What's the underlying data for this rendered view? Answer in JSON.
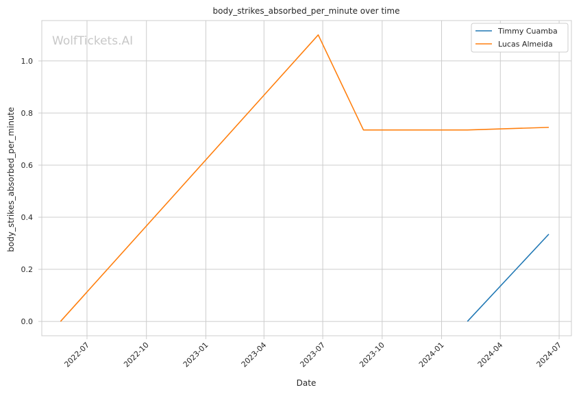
{
  "chart_data": {
    "type": "line",
    "title": "body_strikes_absorbed_per_minute over time",
    "xlabel": "Date",
    "ylabel": "body_strikes_absorbed_per_minute",
    "watermark": "WolfTickets.AI",
    "xlim": [
      "2022-04-22",
      "2024-07-20"
    ],
    "ylim": [
      -0.055,
      1.155
    ],
    "x_ticks": [
      "2022-07-01",
      "2022-10-01",
      "2023-01-01",
      "2023-04-01",
      "2023-07-01",
      "2023-10-01",
      "2024-01-01",
      "2024-04-01",
      "2024-07-01"
    ],
    "x_tick_labels": [
      "2022-07",
      "2022-10",
      "2023-01",
      "2023-04",
      "2023-07",
      "2023-10",
      "2024-01",
      "2024-04",
      "2024-07"
    ],
    "y_ticks": [
      0.0,
      0.2,
      0.4,
      0.6,
      0.8,
      1.0
    ],
    "y_tick_labels": [
      "0.0",
      "0.2",
      "0.4",
      "0.6",
      "0.8",
      "1.0"
    ],
    "grid": true,
    "legend_position": "top-right",
    "series": [
      {
        "name": "Timmy Cuamba",
        "color": "#1f77b4",
        "x": [
          "2024-02-10",
          "2024-06-15"
        ],
        "y": [
          0.0,
          0.335
        ]
      },
      {
        "name": "Lucas Almeida",
        "color": "#ff7f0e",
        "x": [
          "2022-05-21",
          "2023-06-24",
          "2023-09-02",
          "2024-02-10",
          "2024-06-15"
        ],
        "y": [
          0.0,
          1.1,
          0.735,
          0.735,
          0.745
        ]
      }
    ]
  }
}
